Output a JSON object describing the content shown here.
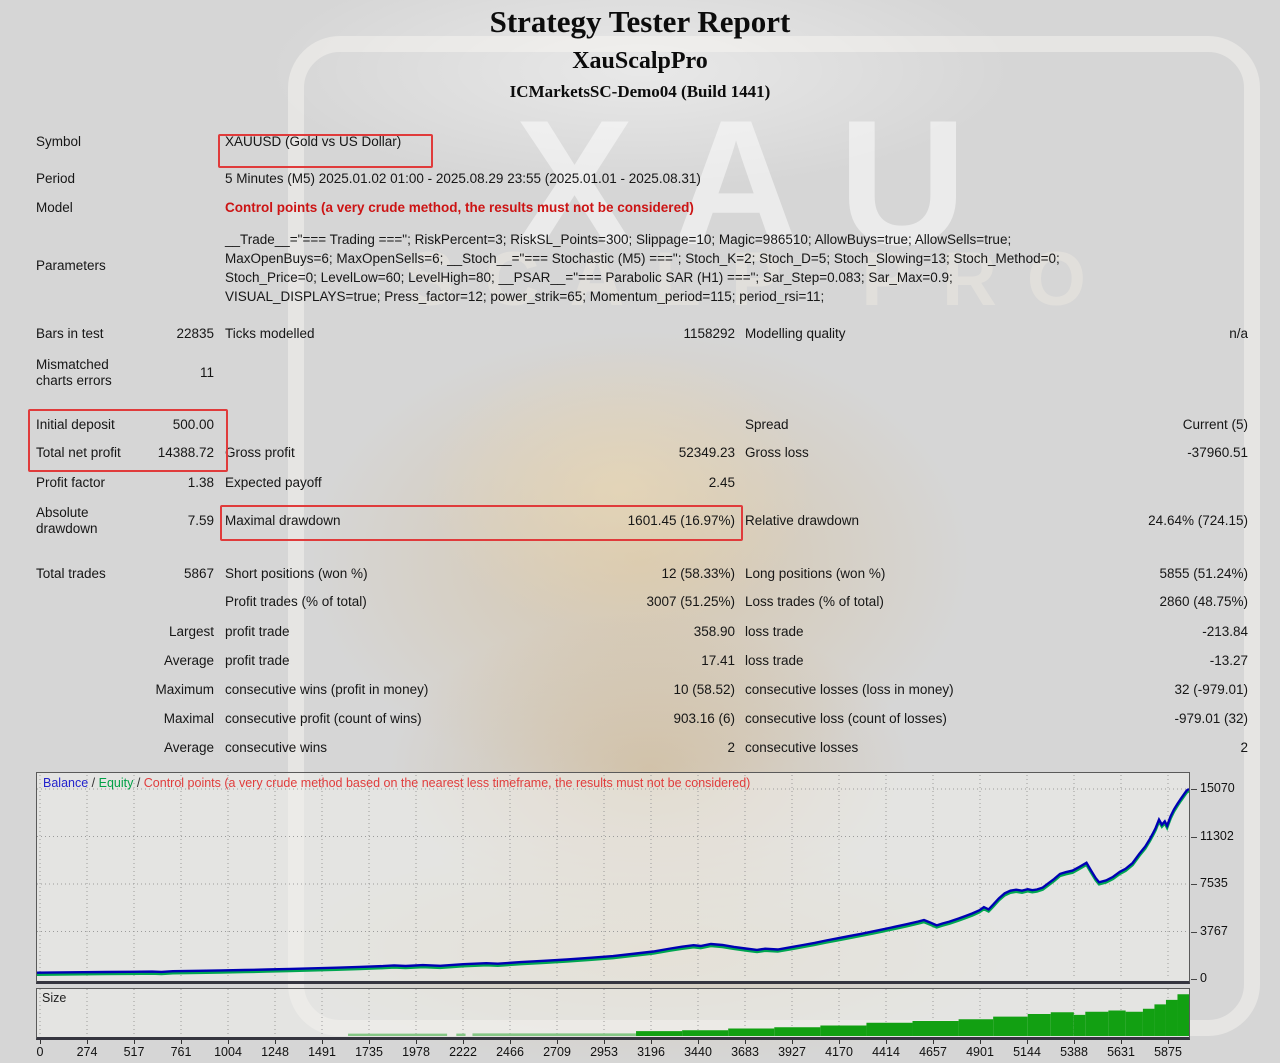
{
  "header": {
    "title": "Strategy Tester Report",
    "subtitle": "XauScalpPro",
    "server": "ICMarketsSC-Demo04 (Build 1441)"
  },
  "watermark": {
    "text_top": "XAU",
    "text_mid": "SCALP PRO"
  },
  "info": {
    "symbol_label": "Symbol",
    "symbol_value": "XAUUSD (Gold vs US Dollar)",
    "period_label": "Period",
    "period_value": "5 Minutes (M5) 2025.01.02 01:00 - 2025.08.29 23:55 (2025.01.01 - 2025.08.31)",
    "model_label": "Model",
    "model_value": "Control points (a very crude method, the results must not be considered)",
    "parameters_label": "Parameters",
    "parameters_lines": [
      "__Trade__=\"=== Trading ===\"; RiskPercent=3; RiskSL_Points=300; Slippage=10; Magic=986510; AllowBuys=true; AllowSells=true;",
      "MaxOpenBuys=6; MaxOpenSells=6; __Stoch__=\"=== Stochastic (M5) ===\"; Stoch_K=2; Stoch_D=5; Stoch_Slowing=13; Stoch_Method=0;",
      "Stoch_Price=0; LevelLow=60; LevelHigh=80; __PSAR__=\"=== Parabolic SAR (H1) ===\"; Sar_Step=0.083; Sar_Max=0.9;",
      "VISUAL_DISPLAYS=true; Press_factor=12; power_strik=65; Momentum_period=115; period_rsi=11;"
    ]
  },
  "stats": {
    "bars_label": "Bars in test",
    "bars_value": "22835",
    "ticks_label": "Ticks modelled",
    "ticks_value": "1158292",
    "quality_label": "Modelling quality",
    "quality_value": "n/a",
    "mismatch_label": "Mismatched charts errors",
    "mismatch_value": "11"
  },
  "results": {
    "initial_deposit_label": "Initial deposit",
    "initial_deposit_value": "500.00",
    "spread_label": "Spread",
    "spread_value": "Current (5)",
    "total_net_profit_label": "Total net profit",
    "total_net_profit_value": "14388.72",
    "gross_profit_label": "Gross profit",
    "gross_profit_value": "52349.23",
    "gross_loss_label": "Gross loss",
    "gross_loss_value": "-37960.51",
    "profit_factor_label": "Profit factor",
    "profit_factor_value": "1.38",
    "expected_payoff_label": "Expected payoff",
    "expected_payoff_value": "2.45",
    "absolute_drawdown_label": "Absolute drawdown",
    "absolute_drawdown_value": "7.59",
    "maximal_drawdown_label": "Maximal drawdown",
    "maximal_drawdown_value": "1601.45 (16.97%)",
    "relative_drawdown_label": "Relative drawdown",
    "relative_drawdown_value": "24.64% (724.15)"
  },
  "trades": {
    "total_trades_label": "Total trades",
    "total_trades_value": "5867",
    "short_positions_label": "Short positions (won %)",
    "short_positions_value": "12 (58.33%)",
    "long_positions_label": "Long positions (won %)",
    "long_positions_value": "5855 (51.24%)",
    "profit_trades_label": "Profit trades (% of total)",
    "profit_trades_value": "3007 (51.25%)",
    "loss_trades_label": "Loss trades (% of total)",
    "loss_trades_value": "2860 (48.75%)",
    "largest_prefix": "Largest",
    "largest_profit_label": "profit trade",
    "largest_profit_value": "358.90",
    "largest_loss_label": "loss trade",
    "largest_loss_value": "-213.84",
    "average_prefix": "Average",
    "average_profit_label": "profit trade",
    "average_profit_value": "17.41",
    "average_loss_label": "loss trade",
    "average_loss_value": "-13.27",
    "maximum_prefix": "Maximum",
    "maximum_wins_label": "consecutive wins (profit in money)",
    "maximum_wins_value": "10 (58.52)",
    "maximum_losses_label": "consecutive losses (loss in money)",
    "maximum_losses_value": "32 (-979.01)",
    "maximal_prefix": "Maximal",
    "maximal_profit_label": "consecutive profit (count of wins)",
    "maximal_profit_value": "903.16 (6)",
    "maximal_loss_label": "consecutive loss (count of losses)",
    "maximal_loss_value": "-979.01 (32)",
    "avgc_prefix": "Average",
    "avgc_wins_label": "consecutive wins",
    "avgc_wins_value": "2",
    "avgc_losses_label": "consecutive losses",
    "avgc_losses_value": "2"
  },
  "chart": {
    "legend": {
      "balance": "Balance",
      "equity": "Equity",
      "sep": " / ",
      "note": "Control points (a very crude method based on the nearest less timeframe, the results must not be considered)"
    },
    "size_label": "Size"
  },
  "colors": {
    "highlight_box": "#e03b3b",
    "warning_text": "#cc1414",
    "balance_line": "#0000b4",
    "equity_line": "#00a651",
    "size_solid": "#12a012",
    "size_light": "#85c785"
  },
  "chart_data": [
    {
      "type": "line",
      "title": "Balance / Equity curve",
      "legend_position": "top-left",
      "grid": "dotted",
      "x_axis": {
        "min": 0,
        "max": 5950,
        "ticks": [
          0,
          274,
          517,
          761,
          1004,
          1248,
          1491,
          1735,
          1978,
          2222,
          2466,
          2709,
          2953,
          3196,
          3440,
          3683,
          3927,
          4170,
          4414,
          4657,
          4901,
          5144,
          5388,
          5631,
          5875
        ]
      },
      "y_axis": {
        "min": 0,
        "max": 15400,
        "ticks": [
          0,
          3767,
          7535,
          11302,
          15070
        ]
      },
      "series": [
        {
          "name": "Balance",
          "color": "#0000b4",
          "points": [
            [
              0,
              500
            ],
            [
              0.02,
              520
            ],
            [
              0.04,
              540
            ],
            [
              0.06,
              555
            ],
            [
              0.08,
              575
            ],
            [
              0.1,
              590
            ],
            [
              0.108,
              560
            ],
            [
              0.118,
              620
            ],
            [
              0.14,
              650
            ],
            [
              0.16,
              680
            ],
            [
              0.18,
              710
            ],
            [
              0.2,
              750
            ],
            [
              0.22,
              800
            ],
            [
              0.24,
              850
            ],
            [
              0.26,
              900
            ],
            [
              0.28,
              960
            ],
            [
              0.3,
              1020
            ],
            [
              0.31,
              1080
            ],
            [
              0.32,
              1030
            ],
            [
              0.335,
              1100
            ],
            [
              0.35,
              1050
            ],
            [
              0.37,
              1170
            ],
            [
              0.39,
              1250
            ],
            [
              0.4,
              1210
            ],
            [
              0.42,
              1340
            ],
            [
              0.44,
              1440
            ],
            [
              0.46,
              1550
            ],
            [
              0.48,
              1680
            ],
            [
              0.5,
              1820
            ],
            [
              0.52,
              2020
            ],
            [
              0.535,
              2180
            ],
            [
              0.55,
              2420
            ],
            [
              0.56,
              2560
            ],
            [
              0.57,
              2680
            ],
            [
              0.576,
              2620
            ],
            [
              0.585,
              2780
            ],
            [
              0.595,
              2700
            ],
            [
              0.605,
              2550
            ],
            [
              0.615,
              2420
            ],
            [
              0.625,
              2310
            ],
            [
              0.632,
              2400
            ],
            [
              0.643,
              2340
            ],
            [
              0.655,
              2530
            ],
            [
              0.665,
              2700
            ],
            [
              0.675,
              2860
            ],
            [
              0.685,
              3050
            ],
            [
              0.695,
              3230
            ],
            [
              0.705,
              3400
            ],
            [
              0.715,
              3580
            ],
            [
              0.725,
              3760
            ],
            [
              0.735,
              3950
            ],
            [
              0.745,
              4150
            ],
            [
              0.755,
              4350
            ],
            [
              0.765,
              4560
            ],
            [
              0.77,
              4680
            ],
            [
              0.776,
              4450
            ],
            [
              0.781,
              4250
            ],
            [
              0.786,
              4400
            ],
            [
              0.792,
              4550
            ],
            [
              0.8,
              4800
            ],
            [
              0.806,
              5000
            ],
            [
              0.812,
              5200
            ],
            [
              0.818,
              5450
            ],
            [
              0.822,
              5700
            ],
            [
              0.826,
              5520
            ],
            [
              0.83,
              5900
            ],
            [
              0.835,
              6400
            ],
            [
              0.84,
              6800
            ],
            [
              0.845,
              7000
            ],
            [
              0.85,
              7080
            ],
            [
              0.855,
              7000
            ],
            [
              0.86,
              7120
            ],
            [
              0.864,
              7040
            ],
            [
              0.868,
              7100
            ],
            [
              0.873,
              7250
            ],
            [
              0.878,
              7600
            ],
            [
              0.883,
              7940
            ],
            [
              0.888,
              8340
            ],
            [
              0.893,
              8470
            ],
            [
              0.899,
              8600
            ],
            [
              0.905,
              8900
            ],
            [
              0.911,
              9220
            ],
            [
              0.915,
              8600
            ],
            [
              0.919,
              8000
            ],
            [
              0.922,
              7670
            ],
            [
              0.928,
              7820
            ],
            [
              0.934,
              8100
            ],
            [
              0.94,
              8500
            ],
            [
              0.945,
              8740
            ],
            [
              0.951,
              9200
            ],
            [
              0.957,
              9950
            ],
            [
              0.962,
              10500
            ],
            [
              0.966,
              11100
            ],
            [
              0.969,
              11600
            ],
            [
              0.971,
              11970
            ],
            [
              0.974,
              12640
            ],
            [
              0.9765,
              12240
            ],
            [
              0.979,
              12500
            ],
            [
              0.981,
              12150
            ],
            [
              0.984,
              12900
            ],
            [
              0.987,
              13450
            ],
            [
              0.99,
              13900
            ],
            [
              0.993,
              14300
            ],
            [
              0.996,
              14700
            ],
            [
              0.998,
              14950
            ],
            [
              1,
              15070
            ]
          ]
        },
        {
          "name": "Equity",
          "color": "#00a651",
          "note": "overlaps balance, visible at drawdown dips"
        }
      ]
    },
    {
      "type": "area",
      "title": "Size",
      "colors": {
        "solid": "#12a012",
        "light": "#85c785"
      },
      "series": [
        {
          "name": "Size",
          "segments": [
            [
              0.27,
              0.356,
              0.055,
              "light"
            ],
            [
              0.364,
              0.372,
              0.055,
              "light"
            ],
            [
              0.378,
              0.52,
              0.06,
              "light"
            ],
            [
              0.52,
              0.56,
              0.11,
              "solid"
            ],
            [
              0.56,
              0.6,
              0.13,
              "solid"
            ],
            [
              0.6,
              0.64,
              0.17,
              "solid"
            ],
            [
              0.64,
              0.68,
              0.2,
              "solid"
            ],
            [
              0.68,
              0.72,
              0.24,
              "solid"
            ],
            [
              0.72,
              0.76,
              0.3,
              "solid"
            ],
            [
              0.76,
              0.8,
              0.34,
              "solid"
            ],
            [
              0.8,
              0.83,
              0.38,
              "solid"
            ],
            [
              0.83,
              0.86,
              0.44,
              "solid"
            ],
            [
              0.86,
              0.88,
              0.5,
              "solid"
            ],
            [
              0.88,
              0.9,
              0.54,
              "solid"
            ],
            [
              0.9,
              0.91,
              0.48,
              "solid"
            ],
            [
              0.91,
              0.93,
              0.55,
              "solid"
            ],
            [
              0.93,
              0.945,
              0.58,
              "solid"
            ],
            [
              0.945,
              0.96,
              0.55,
              "solid"
            ],
            [
              0.96,
              0.97,
              0.62,
              "solid"
            ],
            [
              0.97,
              0.98,
              0.72,
              "solid"
            ],
            [
              0.98,
              0.99,
              0.82,
              "solid"
            ],
            [
              0.99,
              1,
              0.95,
              "solid"
            ]
          ]
        }
      ]
    }
  ]
}
